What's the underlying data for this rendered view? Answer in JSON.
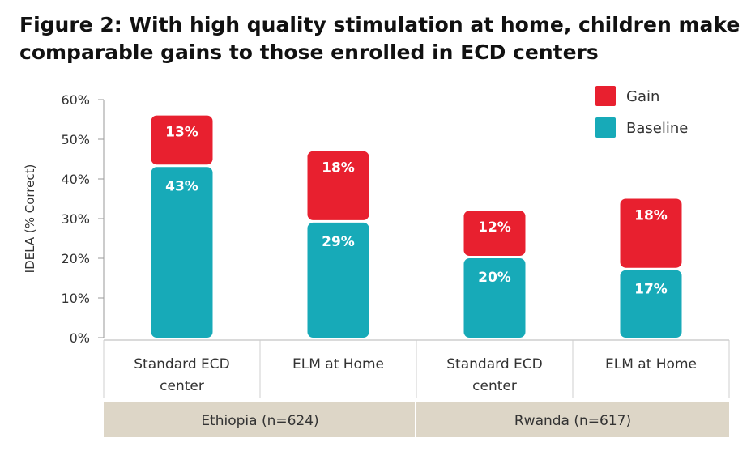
{
  "title_lines": [
    "Figure 2: With high quality stimulation at home, children make",
    "comparable gains to those enrolled in ECD centers"
  ],
  "chart_data": {
    "type": "bar",
    "stacked": true,
    "ylabel": "IDELA (% Correct)",
    "ylim": [
      0,
      60
    ],
    "yticks": [
      "0%",
      "10%",
      "20%",
      "30%",
      "40%",
      "50%",
      "60%"
    ],
    "categories": [
      [
        "Standard ECD",
        "center"
      ],
      [
        "ELM at Home"
      ],
      [
        "Standard ECD",
        "center"
      ],
      [
        "ELM at Home"
      ]
    ],
    "groups": [
      {
        "label": "Ethiopia (n=624)",
        "span": 2
      },
      {
        "label": "Rwanda (n=617)",
        "span": 2
      }
    ],
    "series": [
      {
        "name": "Baseline",
        "color": "#17aab8",
        "values": [
          43,
          29,
          20,
          17
        ],
        "labels": [
          "43%",
          "29%",
          "20%",
          "17%"
        ]
      },
      {
        "name": "Gain",
        "color": "#e8202f",
        "values": [
          13,
          18,
          12,
          18
        ],
        "labels": [
          "13%",
          "18%",
          "12%",
          "18%"
        ]
      }
    ],
    "legend": {
      "placement": "top-right",
      "order": [
        "Gain",
        "Baseline"
      ]
    },
    "group_band_color": "#ddd6c7",
    "grid": false
  }
}
